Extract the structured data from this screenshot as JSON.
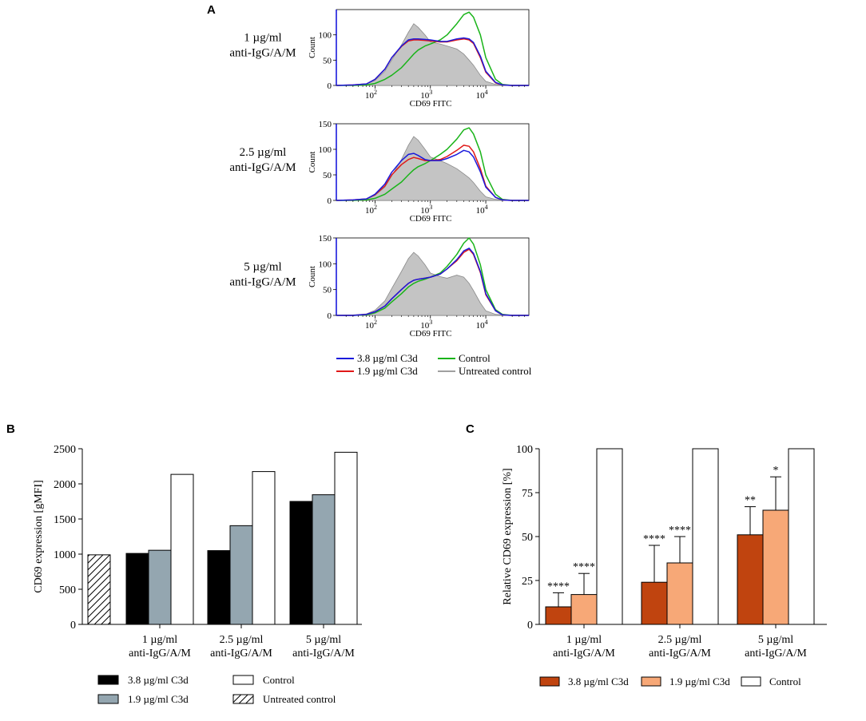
{
  "figure": {
    "panel_a": "A",
    "panel_b": "B",
    "panel_c": "C"
  },
  "chart_data": [
    {
      "type": "line",
      "panel": "A",
      "description": "Flow cytometry histograms of CD69 FITC, three stimulation conditions",
      "xscale": "log",
      "xlim": [
        20,
        60000
      ],
      "ylim": [
        0,
        150
      ],
      "xlabel": "CD69 FITC",
      "ylabel": "Count",
      "xticks": [
        {
          "base": "10",
          "exp": "2",
          "value": 100
        },
        {
          "base": "10",
          "exp": "3",
          "value": 1000
        },
        {
          "base": "10",
          "exp": "4",
          "value": 10000
        }
      ],
      "row_labels": [
        {
          "line1": "1 µg/ml",
          "line2": "anti-IgG/A/M"
        },
        {
          "line1": "2.5 µg/ml",
          "line2": "anti-IgG/A/M"
        },
        {
          "line1": "5 µg/ml",
          "line2": "anti-IgG/A/M"
        }
      ],
      "ytick_sets": [
        [
          "0",
          "50",
          "100"
        ],
        [
          "0",
          "50",
          "100",
          "150"
        ],
        [
          "0",
          "50",
          "100",
          "150"
        ]
      ],
      "ytick_values": [
        [
          0,
          50,
          100
        ],
        [
          0,
          50,
          100,
          150
        ],
        [
          0,
          50,
          100,
          150
        ]
      ],
      "legend": [
        {
          "label": "3.8 µg/ml C3d",
          "color": "#1a1adc"
        },
        {
          "label": "Control",
          "color": "#19b419"
        },
        {
          "label": "1.9 µg/ml C3d",
          "color": "#e01818"
        },
        {
          "label": "Untreated control",
          "color": "#a0a0a0"
        }
      ],
      "histograms": [
        {
          "x": [
            20,
            40,
            70,
            100,
            150,
            200,
            300,
            400,
            500,
            600,
            800,
            1000,
            1500,
            2000,
            3000,
            4000,
            5000,
            6000,
            8000,
            10000,
            15000,
            20000,
            30000,
            50000,
            60000
          ],
          "untreated": [
            0,
            1,
            3,
            10,
            28,
            50,
            80,
            105,
            122,
            115,
            100,
            86,
            82,
            78,
            72,
            62,
            50,
            40,
            20,
            8,
            2,
            1,
            0,
            0,
            0
          ],
          "c3d_38": [
            0,
            1,
            3,
            12,
            32,
            55,
            78,
            90,
            92,
            92,
            91,
            90,
            87,
            87,
            92,
            94,
            92,
            85,
            58,
            28,
            6,
            1,
            0,
            0,
            0
          ],
          "c3d_19": [
            0,
            1,
            3,
            12,
            32,
            55,
            77,
            88,
            90,
            90,
            89,
            88,
            86,
            86,
            90,
            92,
            90,
            83,
            55,
            26,
            5,
            1,
            0,
            0,
            0
          ],
          "control": [
            0,
            0,
            1,
            4,
            12,
            20,
            35,
            50,
            62,
            70,
            78,
            82,
            90,
            100,
            122,
            140,
            145,
            135,
            100,
            55,
            12,
            2,
            0,
            0,
            0
          ]
        },
        {
          "x": [
            20,
            40,
            70,
            100,
            150,
            200,
            300,
            400,
            500,
            600,
            800,
            1000,
            1500,
            2000,
            3000,
            4000,
            5000,
            6000,
            8000,
            10000,
            15000,
            20000,
            30000,
            50000,
            60000
          ],
          "untreated": [
            0,
            1,
            3,
            10,
            26,
            48,
            80,
            108,
            125,
            118,
            100,
            85,
            78,
            72,
            62,
            52,
            44,
            35,
            18,
            7,
            2,
            1,
            0,
            0,
            0
          ],
          "c3d_38": [
            0,
            1,
            3,
            12,
            32,
            55,
            78,
            90,
            92,
            88,
            80,
            78,
            78,
            82,
            90,
            98,
            95,
            85,
            56,
            26,
            6,
            1,
            0,
            0,
            0
          ],
          "c3d_19": [
            0,
            1,
            3,
            11,
            28,
            50,
            70,
            80,
            84,
            82,
            78,
            78,
            80,
            86,
            98,
            108,
            106,
            95,
            62,
            28,
            6,
            1,
            0,
            0,
            0
          ],
          "control": [
            0,
            0,
            1,
            4,
            12,
            22,
            36,
            50,
            60,
            66,
            72,
            78,
            90,
            100,
            120,
            138,
            142,
            130,
            95,
            50,
            12,
            2,
            0,
            0,
            0
          ]
        },
        {
          "x": [
            20,
            40,
            70,
            100,
            150,
            200,
            300,
            400,
            500,
            600,
            800,
            1000,
            1500,
            2000,
            3000,
            4000,
            5000,
            6000,
            8000,
            10000,
            15000,
            20000,
            30000,
            50000,
            60000
          ],
          "untreated": [
            0,
            1,
            3,
            10,
            28,
            52,
            85,
            110,
            122,
            115,
            98,
            82,
            75,
            72,
            78,
            74,
            62,
            48,
            24,
            9,
            2,
            1,
            0,
            0,
            0
          ],
          "c3d_38": [
            0,
            0,
            2,
            7,
            18,
            32,
            50,
            62,
            68,
            70,
            72,
            74,
            80,
            90,
            108,
            125,
            130,
            120,
            85,
            42,
            9,
            1,
            0,
            0,
            0
          ],
          "c3d_19": [
            0,
            0,
            2,
            7,
            18,
            32,
            50,
            62,
            68,
            70,
            72,
            74,
            80,
            90,
            106,
            122,
            128,
            118,
            83,
            40,
            9,
            1,
            0,
            0,
            0
          ],
          "control": [
            0,
            0,
            1,
            5,
            14,
            26,
            42,
            55,
            62,
            66,
            70,
            74,
            82,
            95,
            118,
            140,
            150,
            138,
            98,
            50,
            11,
            2,
            0,
            0,
            0
          ]
        }
      ]
    },
    {
      "type": "bar",
      "panel": "B",
      "ylabel": "CD69 expression [gMFI]",
      "ylim": [
        0,
        2500
      ],
      "yticks": [
        0,
        500,
        1000,
        1500,
        2000,
        2500
      ],
      "groups": [
        {
          "line1": "1 µg/ml",
          "line2": "anti-IgG/A/M"
        },
        {
          "line1": "2.5 µg/ml",
          "line2": "anti-IgG/A/M"
        },
        {
          "line1": "5 µg/ml",
          "line2": "anti-IgG/A/M"
        }
      ],
      "untreated_control": {
        "name": "Untreated control",
        "value": 990
      },
      "series": [
        {
          "name": "3.8 µg/ml C3d",
          "fill": "#000000",
          "values": [
            1010,
            1050,
            1750
          ]
        },
        {
          "name": "1.9 µg/ml C3d",
          "fill": "#94a6b0",
          "values": [
            1055,
            1405,
            1845
          ]
        },
        {
          "name": "Control",
          "fill": "#ffffff",
          "values": [
            2135,
            2175,
            2450
          ]
        }
      ],
      "series_fix_note": "",
      "legend": [
        {
          "label": "3.8 µg/ml C3d",
          "fill": "#000000"
        },
        {
          "label": "Control",
          "fill": "#ffffff"
        },
        {
          "label": "1.9 µg/ml C3d",
          "fill": "#94a6b0"
        },
        {
          "label": "Untreated control",
          "fill": "hatch"
        }
      ]
    },
    {
      "type": "bar",
      "panel": "C",
      "ylabel": "Relative CD69 expression [%]",
      "ylim": [
        0,
        100
      ],
      "yticks": [
        0,
        25,
        50,
        75,
        100
      ],
      "groups": [
        {
          "line1": "1 µg/ml",
          "line2": "anti-IgG/A/M"
        },
        {
          "line1": "2.5 µg/ml",
          "line2": "anti-IgG/A/M"
        },
        {
          "line1": "5 µg/ml",
          "line2": "anti-IgG/A/M"
        }
      ],
      "series": [
        {
          "name": "3.8 µg/ml C3d",
          "fill": "#c0440f",
          "values": [
            10,
            24,
            51
          ],
          "errors": [
            8,
            21,
            16
          ],
          "significance": [
            "****",
            "****",
            "**"
          ]
        },
        {
          "name": "1.9 µg/ml C3d",
          "fill": "#f7a877",
          "values": [
            17,
            35,
            65
          ],
          "errors": [
            12,
            15,
            19
          ],
          "significance": [
            "****",
            "****",
            "*"
          ]
        },
        {
          "name": "Control",
          "fill": "#ffffff",
          "values": [
            100,
            100,
            100
          ],
          "errors": [
            0,
            0,
            0
          ],
          "significance": [
            "",
            "",
            ""
          ]
        }
      ],
      "legend": [
        {
          "label": "3.8 µg/ml C3d",
          "fill": "#c0440f"
        },
        {
          "label": "1.9 µg/ml C3d",
          "fill": "#f7a877"
        },
        {
          "label": "Control",
          "fill": "#ffffff"
        }
      ]
    }
  ]
}
